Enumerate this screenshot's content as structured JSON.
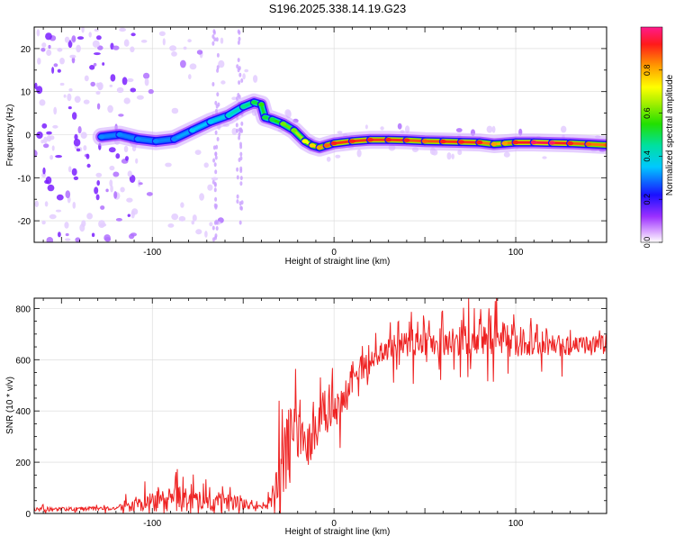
{
  "title": "S196.2025.338.14.19.G23",
  "colors": {
    "snr_line": "#ee2222",
    "ridge_low": "#1a10ff",
    "ridge_high": "#ff1a1a",
    "scatter": "#8a2be2",
    "grid": "#d8d8d8"
  },
  "chart_data": [
    {
      "type": "heatmap",
      "title": "S196.2025.338.14.19.G23",
      "xlabel": "Height of straight line (km)",
      "ylabel": "Frequency (Hz)",
      "xlim": [
        -165,
        150
      ],
      "ylim": [
        -25,
        25
      ],
      "xticks": [
        -100,
        0,
        100
      ],
      "yticks": [
        -20,
        -10,
        0,
        10,
        20
      ],
      "colorbar": {
        "label": "Normalized spectral amplitude",
        "range": [
          0,
          1
        ],
        "ticks": [
          "0.0",
          "0.2",
          "0.4",
          "0.6",
          "0.8"
        ]
      },
      "ridge": {
        "x": [
          -128,
          -118,
          -108,
          -98,
          -88,
          -78,
          -68,
          -58,
          -50,
          -44,
          -40,
          -38,
          -34,
          -28,
          -22,
          -16,
          -12,
          -8,
          -4,
          0,
          10,
          20,
          30,
          40,
          50,
          60,
          70,
          80,
          88,
          94,
          100,
          110,
          120,
          130,
          140,
          150
        ],
        "freq": [
          -0.5,
          0.0,
          -1.0,
          -1.5,
          -1.0,
          1.0,
          3.0,
          4.5,
          6.5,
          7.5,
          7.0,
          4.0,
          3.5,
          2.5,
          1.0,
          -1.5,
          -2.5,
          -3.0,
          -2.5,
          -2.0,
          -1.5,
          -1.2,
          -1.2,
          -1.3,
          -1.5,
          -1.6,
          -1.7,
          -1.8,
          -2.2,
          -2.0,
          -1.8,
          -1.8,
          -1.9,
          -2.0,
          -2.2,
          -2.4
        ],
        "amp": [
          0.3,
          0.3,
          0.3,
          0.3,
          0.3,
          0.35,
          0.35,
          0.4,
          0.45,
          0.5,
          0.55,
          0.5,
          0.5,
          0.6,
          0.6,
          0.7,
          0.75,
          0.8,
          0.85,
          0.9,
          0.9,
          0.9,
          0.9,
          0.9,
          0.85,
          0.9,
          0.9,
          0.9,
          0.8,
          0.8,
          0.9,
          0.95,
          0.95,
          0.9,
          0.85,
          0.85
        ]
      }
    },
    {
      "type": "line",
      "xlabel": "Height of straight line (km)",
      "ylabel": "SNR (10 * v/v)",
      "xlim": [
        -165,
        150
      ],
      "ylim": [
        0,
        840
      ],
      "xticks": [
        -100,
        0,
        100
      ],
      "yticks": [
        0,
        200,
        400,
        600,
        800
      ],
      "envelope": {
        "x": [
          -165,
          -120,
          -105,
          -95,
          -85,
          -70,
          -55,
          -45,
          -38,
          -34,
          -30,
          -25,
          -20,
          -15,
          -10,
          -5,
          0,
          5,
          10,
          15,
          20,
          25,
          30,
          40,
          50,
          60,
          70,
          80,
          90,
          100,
          110,
          120,
          130,
          140,
          150
        ],
        "mean": [
          15,
          20,
          35,
          50,
          55,
          50,
          40,
          30,
          25,
          60,
          150,
          250,
          330,
          260,
          330,
          360,
          400,
          430,
          500,
          560,
          600,
          620,
          650,
          660,
          670,
          670,
          675,
          680,
          680,
          670,
          665,
          655,
          650,
          655,
          660
        ],
        "amp": [
          10,
          10,
          45,
          60,
          70,
          55,
          45,
          15,
          10,
          60,
          150,
          200,
          140,
          120,
          110,
          120,
          100,
          80,
          70,
          60,
          50,
          50,
          60,
          70,
          70,
          70,
          75,
          90,
          95,
          90,
          60,
          55,
          50,
          50,
          60
        ]
      }
    }
  ]
}
